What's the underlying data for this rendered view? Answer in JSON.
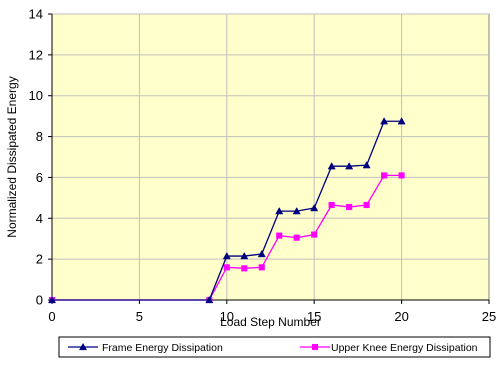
{
  "colors": {
    "plot_background": "#ffffcc",
    "grid": "#c0c0c0",
    "frame_series": "#000080",
    "knee_series": "#ff00ff",
    "axis": "#808080",
    "legend_border": "#000000"
  },
  "chart_data": {
    "type": "line",
    "title": "",
    "xlabel": "Load Step Number",
    "ylabel": "Normalized Dissipated Energy",
    "xlim": [
      0,
      25
    ],
    "ylim": [
      0,
      14
    ],
    "xticks": [
      0,
      5,
      10,
      15,
      20,
      25
    ],
    "yticks": [
      0,
      2,
      4,
      6,
      8,
      10,
      12,
      14
    ],
    "grid": true,
    "legend_position": "bottom",
    "series": [
      {
        "name": "Frame Energy Dissipation",
        "marker": "triangle",
        "x": [
          0,
          9,
          10,
          11,
          12,
          13,
          14,
          15,
          16,
          17,
          18,
          19,
          20
        ],
        "y": [
          0,
          0,
          2.15,
          2.15,
          2.25,
          4.35,
          4.35,
          4.5,
          6.55,
          6.55,
          6.6,
          8.75,
          8.75
        ]
      },
      {
        "name": "Upper Knee Energy Dissipation",
        "marker": "square",
        "x": [
          0,
          9,
          10,
          11,
          12,
          13,
          14,
          15,
          16,
          17,
          18,
          19,
          20
        ],
        "y": [
          0,
          0,
          1.6,
          1.55,
          1.6,
          3.15,
          3.05,
          3.2,
          4.65,
          4.55,
          4.65,
          6.1,
          6.1
        ]
      }
    ]
  }
}
